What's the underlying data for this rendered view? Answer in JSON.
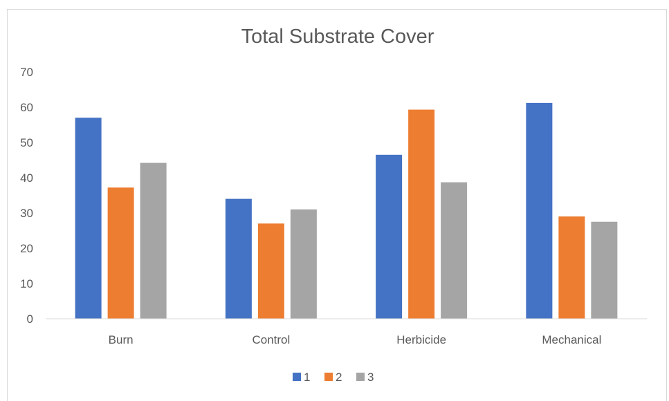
{
  "chart_data": {
    "type": "bar",
    "title": "Total Substrate Cover",
    "xlabel": "",
    "ylabel": "",
    "categories": [
      "Burn",
      "Control",
      "Herbicide",
      "Mechanical"
    ],
    "series": [
      {
        "name": "1",
        "color": "#4472C4",
        "values": [
          57,
          34,
          46.5,
          61.2
        ]
      },
      {
        "name": "2",
        "color": "#ED7D31",
        "values": [
          37.2,
          27,
          59.3,
          29
        ]
      },
      {
        "name": "3",
        "color": "#A5A5A5",
        "values": [
          44.2,
          31,
          38.7,
          27.5
        ]
      }
    ],
    "ylim": [
      0,
      70
    ],
    "yticks": [
      "0",
      "10",
      "20",
      "30",
      "40",
      "50",
      "60",
      "70"
    ],
    "grid": false,
    "legend_position": "bottom"
  }
}
